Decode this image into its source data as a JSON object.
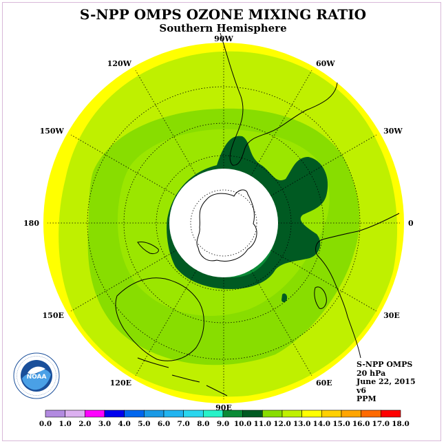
{
  "header": {
    "title": "S-NPP OMPS OZONE MIXING RATIO",
    "subtitle": "Southern Hemisphere"
  },
  "map": {
    "projection": "south-polar-stereographic",
    "longitude_labels": [
      "90W",
      "60W",
      "30W",
      "0",
      "30E",
      "60E",
      "90E",
      "120E",
      "150E",
      "180",
      "150W",
      "120W"
    ],
    "polar_no_data": true
  },
  "info": {
    "instrument": "S-NPP OMPS",
    "level": "20 hPa",
    "date": "June 22, 2015",
    "version": "v6",
    "units": "PPM"
  },
  "colorbar": {
    "labels": [
      "0.0",
      "1.0",
      "2.0",
      "3.0",
      "4.0",
      "5.0",
      "6.0",
      "7.0",
      "8.0",
      "9.0",
      "10.0",
      "11.0",
      "12.0",
      "13.0",
      "14.0",
      "15.0",
      "16.0",
      "17.0",
      "18.0"
    ],
    "colors": [
      "#b28ae0",
      "#dcb0f0",
      "#ff00ff",
      "#0000ee",
      "#0066ee",
      "#1a9ae6",
      "#21b4f0",
      "#2ad6ee",
      "#27f2c8",
      "#0a8a36",
      "#005a22",
      "#88dd00",
      "#bff000",
      "#ffff00",
      "#ffd000",
      "#ffa500",
      "#ff6a00",
      "#ff0000",
      "#8a5a3a"
    ]
  },
  "logo": {
    "text": "NOAA",
    "ring_text": "NATIONAL OCEANIC AND ATMOSPHERIC ADMINISTRATION · U.S. DEPARTMENT OF COMMERCE"
  }
}
